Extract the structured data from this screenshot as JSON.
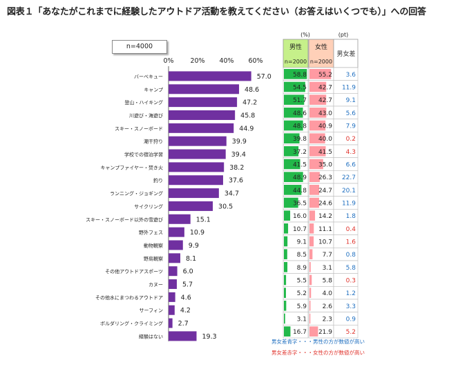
{
  "title": "図表１「あなたがこれまでに経験したアウトドア活動を教えてください（お答えはいくつでも）」への回答",
  "sample_label": "n=4000",
  "table_header": {
    "unit_percent": "(%)",
    "unit_pt": "(pt)",
    "male_label": "男性",
    "male_n": "n=2000",
    "female_label": "女性",
    "female_n": "n=2000",
    "diff_label": "男女差"
  },
  "notes": {
    "blue": "男女差青字・・・男性の方が数値が高い",
    "red": "男女差赤字・・・女性の方が数値が高い"
  },
  "colors": {
    "main_bar": "#7030a0",
    "male_bar": "#22b84a",
    "female_bar": "#ff9aa2",
    "male_header": "#c6f08a",
    "female_header": "#ffd0b8",
    "diff_blue": "#1f6fc0",
    "diff_red": "#e0332c"
  },
  "chart_data": {
    "type": "bar",
    "orientation": "horizontal",
    "xlim": [
      0,
      60
    ],
    "x_ticks": [
      "0%",
      "20%",
      "40%",
      "60%"
    ],
    "grid": false,
    "categories": [
      "バーベキュー",
      "キャンプ",
      "登山・ハイキング",
      "川遊び・海遊び",
      "スキー・スノーボード",
      "潮干狩り",
      "学校での宿泊学習",
      "キャンプファイヤー・焚き火",
      "釣り",
      "ランニング・ジョギング",
      "サイクリング",
      "スキー・スノーボード以外の雪遊び",
      "野外フェス",
      "動物観察",
      "野鳥観察",
      "その他アウトドアスポーツ",
      "カヌー",
      "その他水にまつわるアウトドア",
      "サーフィン",
      "ボルダリング・クライミング",
      "経験はない"
    ],
    "total": [
      "57.0",
      "48.6",
      "47.2",
      "45.8",
      "44.9",
      "39.9",
      "39.4",
      "38.2",
      "37.6",
      "34.7",
      "30.5",
      "15.1",
      "10.9",
      "9.9",
      "8.1",
      "6.0",
      "5.7",
      "4.6",
      "4.2",
      "2.7",
      "19.3"
    ],
    "male": [
      "58.8",
      "54.5",
      "51.7",
      "48.6",
      "48.8",
      "39.8",
      "37.2",
      "41.5",
      "48.9",
      "44.8",
      "36.5",
      "16.0",
      "10.7",
      "9.1",
      "8.5",
      "8.9",
      "5.5",
      "5.2",
      "5.9",
      "3.1",
      "16.7"
    ],
    "female": [
      "55.2",
      "42.7",
      "42.7",
      "43.0",
      "40.9",
      "40.0",
      "41.5",
      "35.0",
      "26.3",
      "24.7",
      "24.6",
      "14.2",
      "11.1",
      "10.7",
      "7.7",
      "3.1",
      "5.8",
      "4.0",
      "2.6",
      "2.3",
      "21.9"
    ],
    "diff": [
      "3.6",
      "11.9",
      "9.1",
      "5.6",
      "7.9",
      "0.2",
      "4.3",
      "6.6",
      "22.7",
      "20.1",
      "11.9",
      "1.8",
      "0.4",
      "1.6",
      "0.8",
      "5.8",
      "0.3",
      "1.2",
      "3.3",
      "0.9",
      "5.2"
    ],
    "diff_higher": [
      "male",
      "male",
      "male",
      "male",
      "male",
      "female",
      "female",
      "male",
      "male",
      "male",
      "male",
      "male",
      "female",
      "female",
      "male",
      "male",
      "female",
      "male",
      "male",
      "male",
      "female"
    ]
  }
}
